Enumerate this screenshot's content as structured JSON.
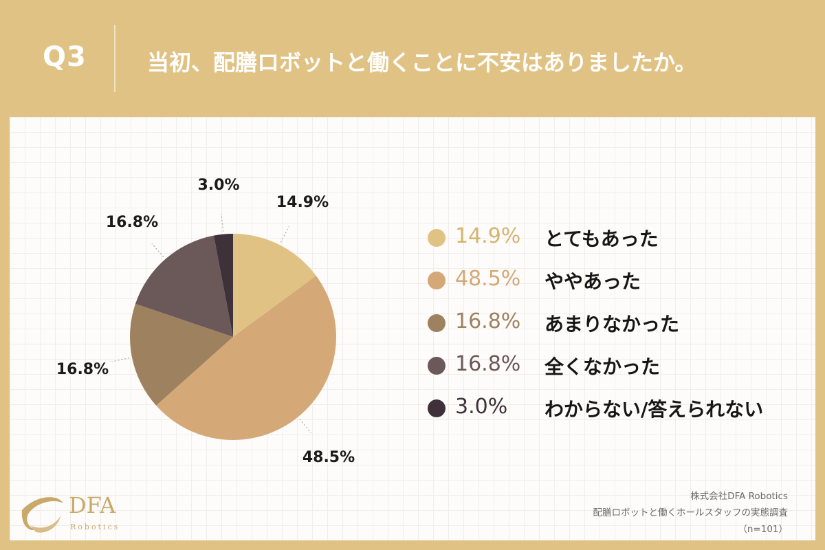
{
  "header": {
    "question_number": "Q3",
    "question_text": "当初、配膳ロボットと働くことに不安はありましたか。"
  },
  "chart_data": {
    "type": "pie",
    "slices": [
      {
        "label": "とてもあった",
        "value": 14.9,
        "display": "14.9%",
        "color": "#e0c384"
      },
      {
        "label": "ややあった",
        "value": 48.5,
        "display": "48.5%",
        "color": "#d4a877"
      },
      {
        "label": "あまりなかった",
        "value": 16.8,
        "display": "16.8%",
        "color": "#9e815f"
      },
      {
        "label": "全くなかった",
        "value": 16.8,
        "display": "16.8%",
        "color": "#6b5858"
      },
      {
        "label": "わからない/答えられない",
        "value": 3.0,
        "display": "3.0%",
        "color": "#3e3139"
      }
    ],
    "start": "12 o'clock, clockwise"
  },
  "logo": {
    "name": "DFA",
    "sub": "Robotics"
  },
  "source": {
    "line1": "株式会社DFA Robotics",
    "line2": "配膳ロボットと働くホールスタッフの実態調査",
    "line3": "（n=101）"
  }
}
